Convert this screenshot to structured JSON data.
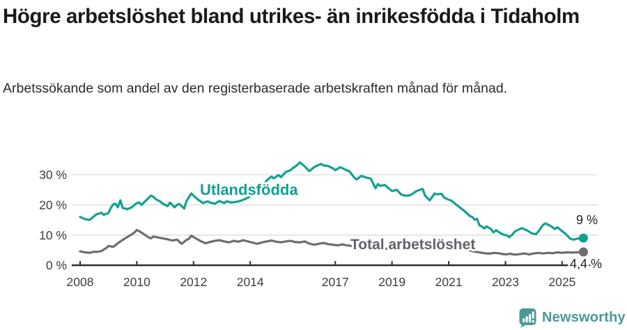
{
  "header": {
    "title": "Högre arbetslöshet bland utrikes- än inrikesfödda i Tidaholm",
    "subtitle": "Arbetssökande som andel av den registerbaserade arbetskraften månad för månad."
  },
  "colors": {
    "foreign_line": "#12a191",
    "total_line": "#6c6c72",
    "gridline": "#e0e0e0",
    "axis": "#2e2e2e",
    "tick_text": "#3d3d3d",
    "title_text": "#1a1a1a",
    "brand": "#4a9997"
  },
  "footer": {
    "brand": "Newsworthy",
    "logo_icon": "bar-chart-exclamation-bubble-icon"
  },
  "chart_data": {
    "type": "line",
    "title": "Högre arbetslöshet bland utrikes- än inrikesfödda i Tidaholm",
    "subtitle": "Arbetssökande som andel av den registerbaserade arbetskraften månad för månad.",
    "xlabel": "",
    "ylabel": "",
    "unit": "%",
    "grid": "horizontal",
    "ylim": [
      0,
      35
    ],
    "x_range": [
      2008,
      2025.75
    ],
    "yticks": [
      {
        "v": 0,
        "label": "0 %"
      },
      {
        "v": 10,
        "label": "10 %"
      },
      {
        "v": 20,
        "label": "20 %"
      },
      {
        "v": 30,
        "label": "30 %"
      }
    ],
    "xticks": [
      {
        "v": 2008,
        "label": "2008"
      },
      {
        "v": 2010,
        "label": "2010"
      },
      {
        "v": 2012,
        "label": "2012"
      },
      {
        "v": 2014,
        "label": "2014"
      },
      {
        "v": 2017,
        "label": "2017"
      },
      {
        "v": 2019,
        "label": "2019"
      },
      {
        "v": 2021,
        "label": "2021"
      },
      {
        "v": 2023,
        "label": "2023"
      },
      {
        "v": 2025,
        "label": "2025"
      }
    ],
    "series": [
      {
        "name": "Utlandsfödda",
        "color": "#12a191",
        "end_label": "9 %",
        "end_value": 9.0,
        "points": [
          [
            2008.0,
            16.0
          ],
          [
            2008.17,
            15.3
          ],
          [
            2008.33,
            15.0
          ],
          [
            2008.5,
            16.3
          ],
          [
            2008.58,
            16.9
          ],
          [
            2008.75,
            17.4
          ],
          [
            2008.83,
            16.7
          ],
          [
            2009.0,
            17.3
          ],
          [
            2009.08,
            19.0
          ],
          [
            2009.17,
            20.2
          ],
          [
            2009.25,
            20.4
          ],
          [
            2009.33,
            19.2
          ],
          [
            2009.42,
            21.5
          ],
          [
            2009.5,
            19.0
          ],
          [
            2009.67,
            18.6
          ],
          [
            2009.83,
            19.3
          ],
          [
            2009.92,
            20.0
          ],
          [
            2010.0,
            20.6
          ],
          [
            2010.08,
            20.8
          ],
          [
            2010.17,
            20.0
          ],
          [
            2010.33,
            21.5
          ],
          [
            2010.5,
            23.1
          ],
          [
            2010.58,
            22.7
          ],
          [
            2010.67,
            21.9
          ],
          [
            2010.83,
            21.1
          ],
          [
            2010.92,
            20.4
          ],
          [
            2011.08,
            19.6
          ],
          [
            2011.17,
            20.8
          ],
          [
            2011.33,
            19.2
          ],
          [
            2011.42,
            20.0
          ],
          [
            2011.5,
            20.3
          ],
          [
            2011.67,
            18.8
          ],
          [
            2011.75,
            21.2
          ],
          [
            2011.92,
            23.8
          ],
          [
            2012.08,
            22.4
          ],
          [
            2012.17,
            21.7
          ],
          [
            2012.33,
            20.6
          ],
          [
            2012.5,
            21.2
          ],
          [
            2012.58,
            20.8
          ],
          [
            2012.75,
            20.4
          ],
          [
            2012.92,
            21.3
          ],
          [
            2013.08,
            20.6
          ],
          [
            2013.17,
            21.2
          ],
          [
            2013.33,
            20.8
          ],
          [
            2013.5,
            21.0
          ],
          [
            2013.67,
            21.4
          ],
          [
            2013.83,
            22.0
          ],
          [
            2014.0,
            22.8
          ],
          [
            2014.17,
            24.0
          ],
          [
            2014.33,
            25.6
          ],
          [
            2014.5,
            27.2
          ],
          [
            2014.58,
            28.1
          ],
          [
            2014.75,
            29.4
          ],
          [
            2014.83,
            28.8
          ],
          [
            2015.0,
            29.9
          ],
          [
            2015.08,
            29.2
          ],
          [
            2015.25,
            30.9
          ],
          [
            2015.42,
            31.5
          ],
          [
            2015.5,
            32.2
          ],
          [
            2015.67,
            33.3
          ],
          [
            2015.75,
            34.1
          ],
          [
            2015.83,
            33.5
          ],
          [
            2015.92,
            32.8
          ],
          [
            2016.08,
            31.2
          ],
          [
            2016.25,
            32.5
          ],
          [
            2016.42,
            33.3
          ],
          [
            2016.5,
            33.6
          ],
          [
            2016.58,
            33.1
          ],
          [
            2016.75,
            32.9
          ],
          [
            2016.92,
            32.1
          ],
          [
            2017.0,
            31.5
          ],
          [
            2017.17,
            32.5
          ],
          [
            2017.25,
            32.2
          ],
          [
            2017.42,
            31.4
          ],
          [
            2017.5,
            31.1
          ],
          [
            2017.67,
            29.0
          ],
          [
            2017.75,
            28.4
          ],
          [
            2017.92,
            29.6
          ],
          [
            2018.08,
            29.1
          ],
          [
            2018.25,
            28.7
          ],
          [
            2018.42,
            25.5
          ],
          [
            2018.5,
            26.9
          ],
          [
            2018.58,
            26.3
          ],
          [
            2018.75,
            26.6
          ],
          [
            2018.92,
            25.2
          ],
          [
            2019.0,
            24.6
          ],
          [
            2019.17,
            25.0
          ],
          [
            2019.33,
            23.4
          ],
          [
            2019.5,
            23.0
          ],
          [
            2019.67,
            23.3
          ],
          [
            2019.83,
            24.4
          ],
          [
            2019.92,
            24.8
          ],
          [
            2020.08,
            25.3
          ],
          [
            2020.17,
            23.0
          ],
          [
            2020.33,
            21.5
          ],
          [
            2020.5,
            23.8
          ],
          [
            2020.58,
            23.5
          ],
          [
            2020.75,
            23.7
          ],
          [
            2020.83,
            22.5
          ],
          [
            2021.0,
            21.7
          ],
          [
            2021.08,
            21.5
          ],
          [
            2021.25,
            20.2
          ],
          [
            2021.42,
            19.0
          ],
          [
            2021.58,
            17.8
          ],
          [
            2021.75,
            16.3
          ],
          [
            2021.83,
            16.0
          ],
          [
            2021.92,
            15.1
          ],
          [
            2022.0,
            15.4
          ],
          [
            2022.08,
            13.3
          ],
          [
            2022.17,
            12.8
          ],
          [
            2022.25,
            12.2
          ],
          [
            2022.33,
            12.9
          ],
          [
            2022.5,
            11.9
          ],
          [
            2022.58,
            10.9
          ],
          [
            2022.67,
            11.6
          ],
          [
            2022.83,
            10.6
          ],
          [
            2022.92,
            10.2
          ],
          [
            2023.08,
            9.8
          ],
          [
            2023.13,
            9.3
          ],
          [
            2023.25,
            10.2
          ],
          [
            2023.33,
            11.2
          ],
          [
            2023.5,
            12.0
          ],
          [
            2023.58,
            12.3
          ],
          [
            2023.75,
            11.6
          ],
          [
            2023.83,
            11.2
          ],
          [
            2023.92,
            10.6
          ],
          [
            2024.08,
            10.3
          ],
          [
            2024.17,
            11.3
          ],
          [
            2024.25,
            12.4
          ],
          [
            2024.33,
            13.4
          ],
          [
            2024.42,
            13.9
          ],
          [
            2024.5,
            13.4
          ],
          [
            2024.58,
            13.1
          ],
          [
            2024.75,
            12.0
          ],
          [
            2024.83,
            12.6
          ],
          [
            2024.92,
            11.9
          ],
          [
            2025.0,
            11.3
          ],
          [
            2025.08,
            10.7
          ],
          [
            2025.17,
            10.0
          ],
          [
            2025.25,
            9.1
          ],
          [
            2025.33,
            8.6
          ],
          [
            2025.42,
            8.5
          ],
          [
            2025.5,
            8.8
          ],
          [
            2025.67,
            8.9
          ],
          [
            2025.75,
            9.0
          ]
        ]
      },
      {
        "name": "Total arbetslöshet",
        "color": "#6c6c72",
        "end_label": "4,4 %",
        "end_value": 4.4,
        "points": [
          [
            2008.0,
            4.6
          ],
          [
            2008.17,
            4.3
          ],
          [
            2008.33,
            4.1
          ],
          [
            2008.5,
            4.5
          ],
          [
            2008.58,
            4.4
          ],
          [
            2008.75,
            4.7
          ],
          [
            2008.92,
            5.7
          ],
          [
            2009.0,
            6.4
          ],
          [
            2009.17,
            6.1
          ],
          [
            2009.33,
            7.3
          ],
          [
            2009.5,
            8.4
          ],
          [
            2009.67,
            9.4
          ],
          [
            2009.83,
            10.3
          ],
          [
            2009.92,
            10.9
          ],
          [
            2010.0,
            11.7
          ],
          [
            2010.08,
            11.3
          ],
          [
            2010.25,
            10.3
          ],
          [
            2010.42,
            9.2
          ],
          [
            2010.5,
            8.9
          ],
          [
            2010.58,
            9.5
          ],
          [
            2010.75,
            9.2
          ],
          [
            2010.92,
            8.9
          ],
          [
            2011.08,
            8.6
          ],
          [
            2011.25,
            8.2
          ],
          [
            2011.42,
            8.5
          ],
          [
            2011.58,
            7.1
          ],
          [
            2011.75,
            8.4
          ],
          [
            2011.83,
            8.7
          ],
          [
            2011.92,
            9.8
          ],
          [
            2012.08,
            8.9
          ],
          [
            2012.25,
            8.0
          ],
          [
            2012.42,
            7.3
          ],
          [
            2012.58,
            7.7
          ],
          [
            2012.75,
            8.1
          ],
          [
            2012.92,
            8.3
          ],
          [
            2013.08,
            7.9
          ],
          [
            2013.25,
            7.6
          ],
          [
            2013.42,
            8.1
          ],
          [
            2013.58,
            7.8
          ],
          [
            2013.75,
            8.3
          ],
          [
            2013.92,
            7.9
          ],
          [
            2014.08,
            7.5
          ],
          [
            2014.25,
            7.1
          ],
          [
            2014.42,
            7.6
          ],
          [
            2014.58,
            7.9
          ],
          [
            2014.75,
            8.2
          ],
          [
            2014.92,
            7.8
          ],
          [
            2015.08,
            7.6
          ],
          [
            2015.25,
            7.9
          ],
          [
            2015.42,
            8.1
          ],
          [
            2015.58,
            7.7
          ],
          [
            2015.75,
            7.6
          ],
          [
            2015.92,
            7.9
          ],
          [
            2016.08,
            7.2
          ],
          [
            2016.25,
            6.8
          ],
          [
            2016.42,
            7.1
          ],
          [
            2016.58,
            7.4
          ],
          [
            2016.75,
            7.0
          ],
          [
            2016.92,
            6.8
          ],
          [
            2017.08,
            6.6
          ],
          [
            2017.25,
            6.9
          ],
          [
            2017.42,
            6.6
          ],
          [
            2017.58,
            6.4
          ],
          [
            2017.75,
            6.2
          ],
          [
            2017.92,
            6.4
          ],
          [
            2018.08,
            6.1
          ],
          [
            2018.25,
            5.9
          ],
          [
            2018.42,
            5.6
          ],
          [
            2018.58,
            5.8
          ],
          [
            2018.75,
            5.5
          ],
          [
            2018.92,
            5.4
          ],
          [
            2019.08,
            5.3
          ],
          [
            2019.25,
            5.5
          ],
          [
            2019.42,
            5.2
          ],
          [
            2019.58,
            5.4
          ],
          [
            2019.75,
            5.6
          ],
          [
            2019.92,
            5.9
          ],
          [
            2020.08,
            6.3
          ],
          [
            2020.25,
            7.3
          ],
          [
            2020.42,
            7.8
          ],
          [
            2020.58,
            7.5
          ],
          [
            2020.75,
            7.2
          ],
          [
            2020.92,
            6.9
          ],
          [
            2021.08,
            6.5
          ],
          [
            2021.25,
            6.1
          ],
          [
            2021.42,
            5.7
          ],
          [
            2021.58,
            5.3
          ],
          [
            2021.75,
            4.9
          ],
          [
            2021.92,
            4.5
          ],
          [
            2022.08,
            4.3
          ],
          [
            2022.17,
            4.1
          ],
          [
            2022.33,
            3.9
          ],
          [
            2022.5,
            3.9
          ],
          [
            2022.58,
            4.1
          ],
          [
            2022.75,
            4.0
          ],
          [
            2022.92,
            3.7
          ],
          [
            2023.0,
            3.6
          ],
          [
            2023.17,
            3.8
          ],
          [
            2023.33,
            3.5
          ],
          [
            2023.5,
            3.7
          ],
          [
            2023.67,
            3.9
          ],
          [
            2023.83,
            3.6
          ],
          [
            2024.0,
            3.9
          ],
          [
            2024.17,
            4.1
          ],
          [
            2024.33,
            3.9
          ],
          [
            2024.5,
            4.1
          ],
          [
            2024.67,
            4.0
          ],
          [
            2024.83,
            4.3
          ],
          [
            2025.0,
            4.1
          ],
          [
            2025.17,
            4.3
          ],
          [
            2025.33,
            4.2
          ],
          [
            2025.5,
            4.3
          ],
          [
            2025.67,
            4.3
          ],
          [
            2025.75,
            4.4
          ]
        ]
      }
    ],
    "legend_position": "inline-labels"
  }
}
